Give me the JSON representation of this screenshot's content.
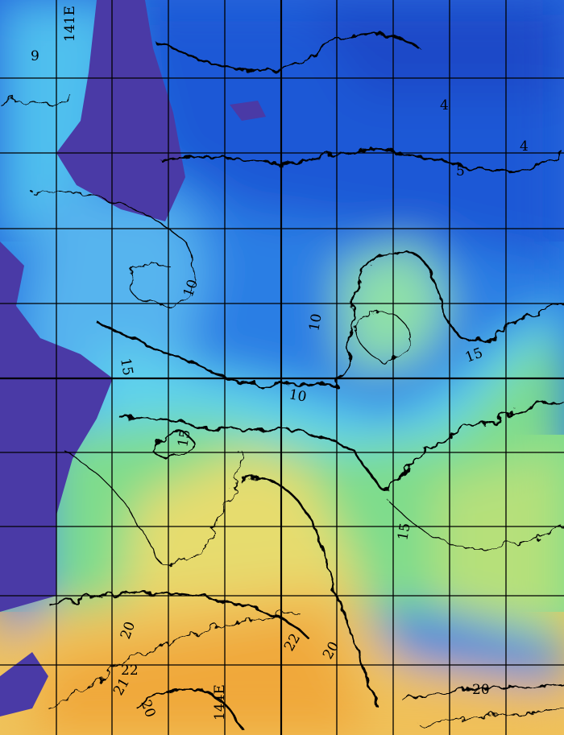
{
  "map": {
    "type": "sea surface temperature contour map",
    "longitude_labels": [
      "141E",
      "144E"
    ],
    "contour_labels": [
      "4",
      "4",
      "5",
      "10",
      "10",
      "15",
      "15",
      "15",
      "15",
      "20",
      "20",
      "20",
      "21",
      "22",
      "22",
      "10",
      "9"
    ],
    "colors": {
      "land": "#4a3aa6",
      "cold": "#1f58d6",
      "cool": "#3fa6ee",
      "mild": "#62d8e8",
      "temperate": "#7fe08a",
      "warm": "#e9e070",
      "hot": "#f0a83a",
      "grid": "#000000",
      "contour": "#000000"
    },
    "gridlines": true
  }
}
